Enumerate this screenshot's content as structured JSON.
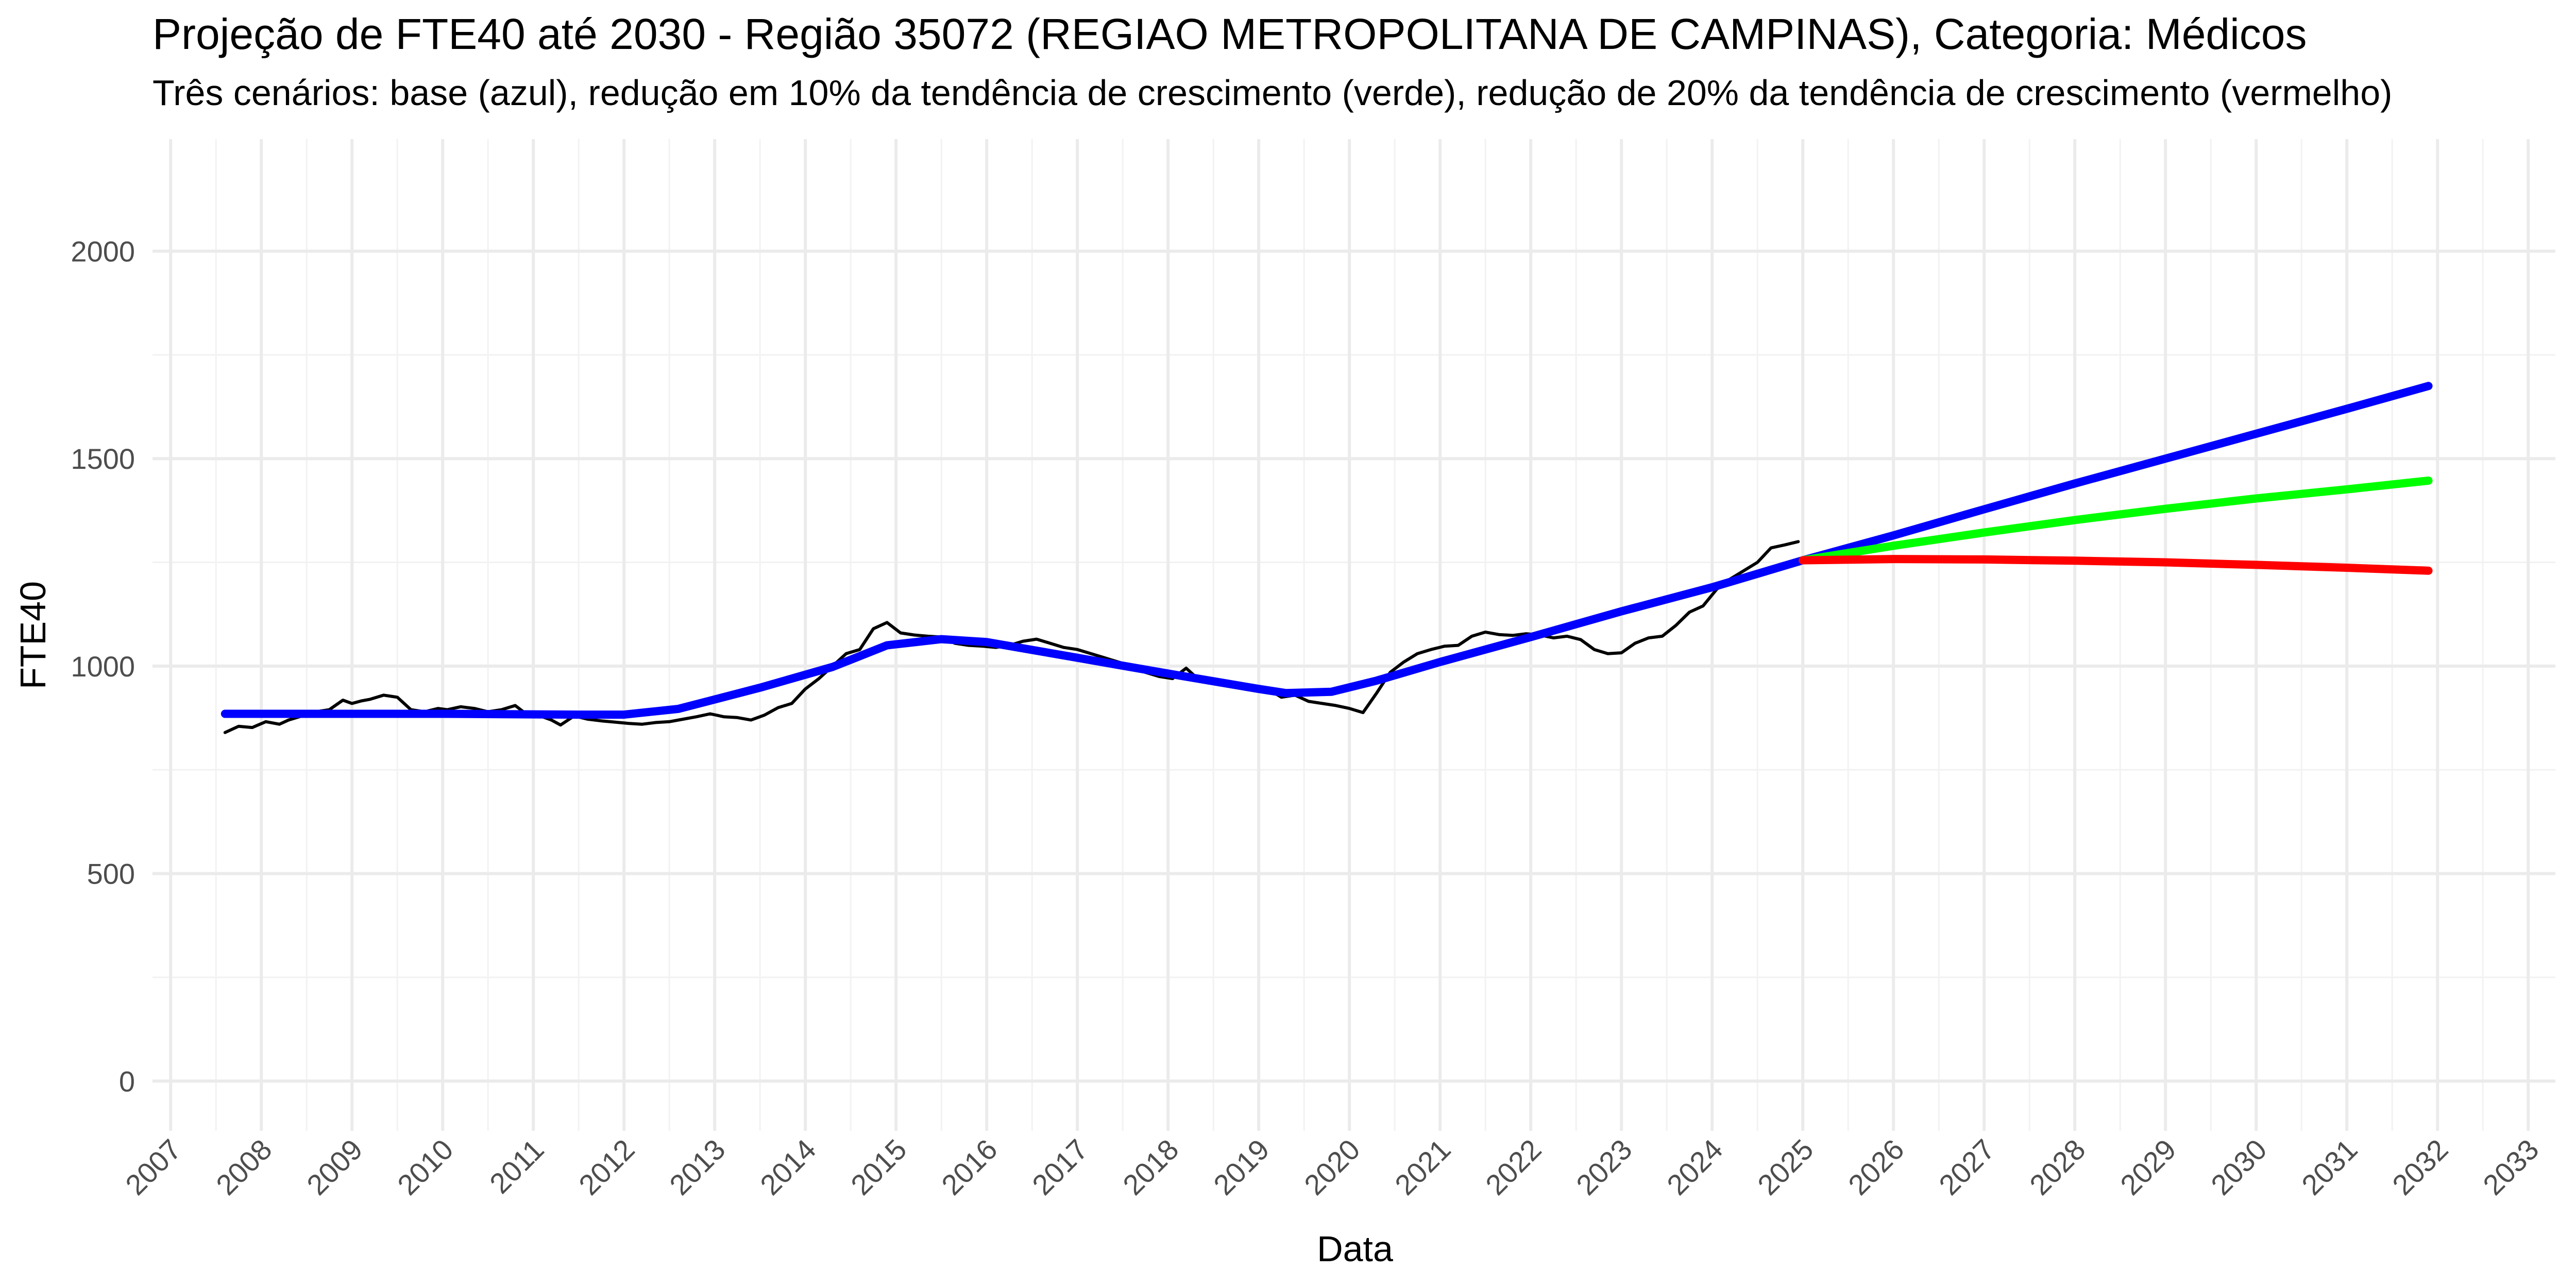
{
  "chart_data": {
    "type": "line",
    "title": "Projeção de FTE40 até 2030 - Região 35072 (REGIAO METROPOLITANA DE CAMPINAS), Categoria: Médicos",
    "subtitle": "Três cenários: base (azul), redução em 10% da tendência de crescimento (verde), redução de 20% da tendência de crescimento (vermelho)",
    "xlabel": "Data",
    "ylabel": "FTE40",
    "xlim": [
      2006.8,
      2033.3
    ],
    "ylim": [
      -120,
      2270
    ],
    "x_ticks": [
      "2007",
      "2008",
      "2009",
      "2010",
      "2011",
      "2012",
      "2013",
      "2014",
      "2015",
      "2016",
      "2017",
      "2018",
      "2019",
      "2020",
      "2021",
      "2022",
      "2023",
      "2024",
      "2025",
      "2026",
      "2027",
      "2028",
      "2029",
      "2030",
      "2031",
      "2032",
      "2033"
    ],
    "y_ticks": [
      0,
      500,
      1000,
      1500,
      2000
    ],
    "grid": true,
    "legend": "none",
    "series": [
      {
        "color": "#000000",
        "width": 6,
        "x": [
          2007.6,
          2007.75,
          2007.9,
          2008.05,
          2008.2,
          2008.3,
          2008.45,
          2008.6,
          2008.75,
          2008.9,
          2009.0,
          2009.1,
          2009.2,
          2009.35,
          2009.5,
          2009.65,
          2009.8,
          2009.95,
          2010.05,
          2010.2,
          2010.35,
          2010.5,
          2010.65,
          2010.8,
          2010.95,
          2011.05,
          2011.2,
          2011.3,
          2011.45,
          2011.6,
          2011.75,
          2011.9,
          2012.05,
          2012.2,
          2012.35,
          2012.5,
          2012.65,
          2012.8,
          2012.95,
          2013.1,
          2013.25,
          2013.4,
          2013.55,
          2013.7,
          2013.85,
          2014.0,
          2014.15,
          2014.3,
          2014.45,
          2014.6,
          2014.75,
          2014.9,
          2015.05,
          2015.2,
          2015.35,
          2015.5,
          2015.65,
          2015.8,
          2015.95,
          2016.1,
          2016.25,
          2016.4,
          2016.55,
          2016.7,
          2016.85,
          2017.0,
          2017.15,
          2017.3,
          2017.45,
          2017.6,
          2017.75,
          2017.9,
          2018.05,
          2018.2,
          2018.35,
          2018.5,
          2018.65,
          2018.8,
          2018.95,
          2019.1,
          2019.25,
          2019.4,
          2019.55,
          2019.7,
          2019.85,
          2020.0,
          2020.15,
          2020.3,
          2020.45,
          2020.6,
          2020.75,
          2020.9,
          2021.05,
          2021.2,
          2021.35,
          2021.5,
          2021.65,
          2021.8,
          2021.95,
          2022.1,
          2022.25,
          2022.4,
          2022.55,
          2022.7,
          2022.85,
          2023.0,
          2023.15,
          2023.3,
          2023.45,
          2023.6,
          2023.75,
          2023.9,
          2024.05,
          2024.2,
          2024.35,
          2024.5,
          2024.65,
          2024.8,
          2024.95
        ],
        "values": [
          840,
          855,
          852,
          866,
          860,
          870,
          880,
          890,
          895,
          918,
          910,
          916,
          920,
          930,
          925,
          895,
          890,
          898,
          895,
          902,
          898,
          890,
          895,
          905,
          880,
          882,
          870,
          858,
          880,
          872,
          868,
          865,
          862,
          860,
          864,
          866,
          872,
          878,
          885,
          878,
          876,
          870,
          882,
          900,
          910,
          945,
          970,
          1000,
          1030,
          1040,
          1090,
          1105,
          1080,
          1075,
          1072,
          1070,
          1055,
          1050,
          1048,
          1045,
          1050,
          1060,
          1065,
          1055,
          1045,
          1040,
          1030,
          1020,
          1010,
          1000,
          985,
          975,
          970,
          995,
          965,
          960,
          955,
          952,
          948,
          945,
          925,
          930,
          915,
          910,
          905,
          898,
          888,
          935,
          985,
          1010,
          1030,
          1040,
          1048,
          1050,
          1072,
          1082,
          1076,
          1074,
          1078,
          1075,
          1068,
          1072,
          1064,
          1040,
          1030,
          1032,
          1055,
          1068,
          1072,
          1098,
          1130,
          1145,
          1185,
          1210,
          1230,
          1250,
          1285,
          1292,
          1300
        ]
      },
      {
        "color": "#0000ff",
        "width": 16,
        "x": [
          2007.6,
          2008.5,
          2010.0,
          2011.5,
          2012.0,
          2012.6,
          2013.5,
          2014.3,
          2014.9,
          2015.5,
          2016.0,
          2017.0,
          2018.0,
          2019.0,
          2019.3,
          2019.8,
          2020.3,
          2021.0,
          2022.0,
          2023.0,
          2024.0,
          2025.0,
          2026.0,
          2027.0,
          2028.0,
          2029.0,
          2030.0,
          2031.0,
          2031.9
        ],
        "values": [
          885,
          885,
          885,
          883,
          883,
          897,
          948,
          998,
          1050,
          1065,
          1058,
          1020,
          982,
          945,
          935,
          938,
          965,
          1010,
          1070,
          1132,
          1190,
          1255,
          1315,
          1378,
          1440,
          1500,
          1560,
          1620,
          1675
        ]
      },
      {
        "color": "#00ff00",
        "width": 16,
        "x": [
          2025.0,
          2026.0,
          2027.0,
          2028.0,
          2029.0,
          2030.0,
          2031.0,
          2031.9
        ],
        "values": [
          1255,
          1290,
          1322,
          1352,
          1379,
          1404,
          1426,
          1447
        ]
      },
      {
        "color": "#ff0000",
        "width": 16,
        "x": [
          2025.0,
          2026.0,
          2027.0,
          2028.0,
          2029.0,
          2030.0,
          2031.0,
          2031.9
        ],
        "values": [
          1255,
          1258,
          1257,
          1254,
          1250,
          1244,
          1237,
          1230
        ]
      }
    ]
  }
}
